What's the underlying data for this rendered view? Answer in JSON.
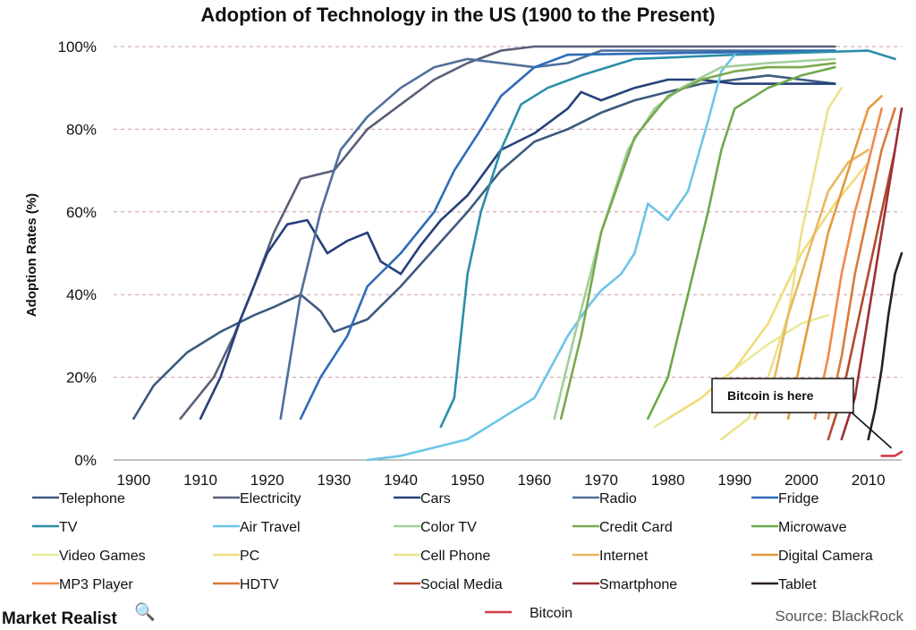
{
  "chart_data": {
    "type": "line",
    "title": "Adoption of Technology in the US (1900 to the Present)",
    "ylabel": "Adoption Rates (%)",
    "xlabel": "",
    "xlim": [
      1897,
      2015
    ],
    "ylim": [
      0,
      100
    ],
    "x_ticks": [
      1900,
      1910,
      1920,
      1930,
      1940,
      1950,
      1960,
      1970,
      1980,
      1990,
      2000,
      2010
    ],
    "y_ticks": [
      "0%",
      "20%",
      "40%",
      "60%",
      "80%",
      "100%"
    ],
    "y_tick_values": [
      0,
      20,
      40,
      60,
      80,
      100
    ],
    "grid": "horizontal dashed",
    "legend_position": "bottom",
    "series": [
      {
        "name": "Telephone",
        "color": "#3d5a80",
        "points": [
          [
            1900,
            10
          ],
          [
            1903,
            18
          ],
          [
            1908,
            26
          ],
          [
            1913,
            31
          ],
          [
            1918,
            35
          ],
          [
            1921,
            37
          ],
          [
            1925,
            40
          ],
          [
            1928,
            36
          ],
          [
            1930,
            31
          ],
          [
            1935,
            34
          ],
          [
            1940,
            42
          ],
          [
            1945,
            51
          ],
          [
            1950,
            60
          ],
          [
            1955,
            70
          ],
          [
            1960,
            77
          ],
          [
            1965,
            80
          ],
          [
            1970,
            84
          ],
          [
            1975,
            87
          ],
          [
            1980,
            89
          ],
          [
            1985,
            91
          ],
          [
            1990,
            92
          ],
          [
            1995,
            93
          ],
          [
            2000,
            92
          ],
          [
            2005,
            91
          ]
        ]
      },
      {
        "name": "Electricity",
        "color": "#5a5f78",
        "points": [
          [
            1907,
            10
          ],
          [
            1912,
            20
          ],
          [
            1915,
            30
          ],
          [
            1918,
            42
          ],
          [
            1921,
            55
          ],
          [
            1925,
            68
          ],
          [
            1930,
            70
          ],
          [
            1935,
            80
          ],
          [
            1940,
            86
          ],
          [
            1945,
            92
          ],
          [
            1950,
            96
          ],
          [
            1955,
            99
          ],
          [
            1960,
            100
          ],
          [
            2005,
            100
          ]
        ]
      },
      {
        "name": "Cars",
        "color": "#25407a",
        "points": [
          [
            1910,
            10
          ],
          [
            1913,
            20
          ],
          [
            1916,
            34
          ],
          [
            1920,
            50
          ],
          [
            1923,
            57
          ],
          [
            1926,
            58
          ],
          [
            1929,
            50
          ],
          [
            1932,
            53
          ],
          [
            1935,
            55
          ],
          [
            1937,
            48
          ],
          [
            1940,
            45
          ],
          [
            1943,
            52
          ],
          [
            1946,
            58
          ],
          [
            1950,
            64
          ],
          [
            1955,
            75
          ],
          [
            1960,
            79
          ],
          [
            1965,
            85
          ],
          [
            1967,
            89
          ],
          [
            1970,
            87
          ],
          [
            1975,
            90
          ],
          [
            1980,
            92
          ],
          [
            1985,
            92
          ],
          [
            1990,
            91
          ],
          [
            1995,
            91
          ],
          [
            2000,
            91
          ],
          [
            2005,
            91
          ]
        ]
      },
      {
        "name": "Radio",
        "color": "#4f6f9b",
        "points": [
          [
            1922,
            10
          ],
          [
            1925,
            40
          ],
          [
            1928,
            60
          ],
          [
            1931,
            75
          ],
          [
            1935,
            83
          ],
          [
            1940,
            90
          ],
          [
            1945,
            95
          ],
          [
            1950,
            97
          ],
          [
            1955,
            96
          ],
          [
            1960,
            95
          ],
          [
            1965,
            96
          ],
          [
            1970,
            99
          ],
          [
            2005,
            99
          ]
        ]
      },
      {
        "name": "Fridge",
        "color": "#2f6bb8",
        "points": [
          [
            1925,
            10
          ],
          [
            1928,
            20
          ],
          [
            1932,
            30
          ],
          [
            1935,
            42
          ],
          [
            1940,
            50
          ],
          [
            1945,
            60
          ],
          [
            1948,
            70
          ],
          [
            1952,
            80
          ],
          [
            1955,
            88
          ],
          [
            1960,
            95
          ],
          [
            1965,
            98
          ],
          [
            2005,
            99
          ]
        ]
      },
      {
        "name": "TV",
        "color": "#2b8ea8",
        "points": [
          [
            1946,
            8
          ],
          [
            1948,
            15
          ],
          [
            1950,
            45
          ],
          [
            1952,
            60
          ],
          [
            1955,
            75
          ],
          [
            1958,
            86
          ],
          [
            1962,
            90
          ],
          [
            1967,
            93
          ],
          [
            1975,
            97
          ],
          [
            1990,
            98
          ],
          [
            2010,
            99
          ],
          [
            2012,
            98
          ],
          [
            2014,
            97
          ]
        ]
      },
      {
        "name": "Air Travel",
        "color": "#6cc4e8",
        "points": [
          [
            1935,
            0
          ],
          [
            1940,
            1
          ],
          [
            1945,
            3
          ],
          [
            1950,
            5
          ],
          [
            1955,
            10
          ],
          [
            1960,
            15
          ],
          [
            1965,
            30
          ],
          [
            1968,
            37
          ],
          [
            1970,
            41
          ],
          [
            1973,
            45
          ],
          [
            1975,
            50
          ],
          [
            1977,
            62
          ],
          [
            1980,
            58
          ],
          [
            1983,
            65
          ],
          [
            1986,
            82
          ],
          [
            1988,
            94
          ],
          [
            1990,
            98
          ]
        ]
      },
      {
        "name": "Color TV",
        "color": "#9fcf9a",
        "points": [
          [
            1963,
            10
          ],
          [
            1966,
            30
          ],
          [
            1970,
            55
          ],
          [
            1974,
            75
          ],
          [
            1978,
            85
          ],
          [
            1982,
            90
          ],
          [
            1988,
            95
          ],
          [
            1995,
            96
          ],
          [
            2005,
            97
          ]
        ]
      },
      {
        "name": "Credit Card",
        "color": "#7aa84e",
        "points": [
          [
            1964,
            10
          ],
          [
            1967,
            30
          ],
          [
            1970,
            55
          ],
          [
            1975,
            78
          ],
          [
            1980,
            88
          ],
          [
            1985,
            92
          ],
          [
            1990,
            94
          ],
          [
            1995,
            95
          ],
          [
            2000,
            95
          ],
          [
            2005,
            96
          ]
        ]
      },
      {
        "name": "Microwave",
        "color": "#6ca94a",
        "points": [
          [
            1977,
            10
          ],
          [
            1980,
            20
          ],
          [
            1983,
            40
          ],
          [
            1986,
            60
          ],
          [
            1988,
            75
          ],
          [
            1990,
            85
          ],
          [
            1995,
            90
          ],
          [
            2000,
            93
          ],
          [
            2005,
            95
          ]
        ]
      },
      {
        "name": "Video Games",
        "color": "#e8eb98",
        "points": [
          [
            1978,
            8
          ],
          [
            1985,
            15
          ],
          [
            1990,
            22
          ],
          [
            1995,
            28
          ],
          [
            2000,
            33
          ],
          [
            2004,
            35
          ]
        ]
      },
      {
        "name": "PC",
        "color": "#f0dc7a",
        "points": [
          [
            1980,
            10
          ],
          [
            1985,
            15
          ],
          [
            1990,
            22
          ],
          [
            1995,
            33
          ],
          [
            2000,
            50
          ],
          [
            2005,
            62
          ],
          [
            2010,
            72
          ]
        ]
      },
      {
        "name": "Cell Phone",
        "color": "#eae28a",
        "points": [
          [
            1988,
            5
          ],
          [
            1992,
            10
          ],
          [
            1995,
            20
          ],
          [
            1998,
            35
          ],
          [
            2000,
            55
          ],
          [
            2002,
            70
          ],
          [
            2004,
            85
          ],
          [
            2006,
            90
          ]
        ]
      },
      {
        "name": "Internet",
        "color": "#e9b860",
        "points": [
          [
            1993,
            10
          ],
          [
            1996,
            20
          ],
          [
            1998,
            35
          ],
          [
            2000,
            45
          ],
          [
            2002,
            55
          ],
          [
            2004,
            65
          ],
          [
            2007,
            72
          ],
          [
            2010,
            75
          ]
        ]
      },
      {
        "name": "Digital Camera",
        "color": "#e39b3c",
        "points": [
          [
            1998,
            10
          ],
          [
            2000,
            25
          ],
          [
            2002,
            40
          ],
          [
            2004,
            55
          ],
          [
            2006,
            65
          ],
          [
            2008,
            75
          ],
          [
            2010,
            85
          ],
          [
            2012,
            88
          ]
        ]
      },
      {
        "name": "MP3 Player",
        "color": "#f08a4b",
        "points": [
          [
            2002,
            10
          ],
          [
            2004,
            25
          ],
          [
            2006,
            45
          ],
          [
            2008,
            60
          ],
          [
            2010,
            72
          ],
          [
            2012,
            85
          ]
        ]
      },
      {
        "name": "HDTV",
        "color": "#d97a3a",
        "points": [
          [
            2004,
            10
          ],
          [
            2006,
            25
          ],
          [
            2008,
            45
          ],
          [
            2010,
            60
          ],
          [
            2012,
            75
          ],
          [
            2014,
            85
          ]
        ]
      },
      {
        "name": "Social Media",
        "color": "#b34a2d",
        "points": [
          [
            2004,
            5
          ],
          [
            2006,
            15
          ],
          [
            2008,
            30
          ],
          [
            2010,
            45
          ],
          [
            2012,
            60
          ],
          [
            2014,
            75
          ]
        ]
      },
      {
        "name": "Smartphone",
        "color": "#9c2f36",
        "points": [
          [
            2006,
            5
          ],
          [
            2008,
            15
          ],
          [
            2010,
            35
          ],
          [
            2012,
            55
          ],
          [
            2014,
            75
          ],
          [
            2015,
            85
          ]
        ]
      },
      {
        "name": "Tablet",
        "color": "#2a1f22",
        "points": [
          [
            2010,
            5
          ],
          [
            2011,
            12
          ],
          [
            2012,
            22
          ],
          [
            2013,
            35
          ],
          [
            2014,
            45
          ],
          [
            2015,
            50
          ]
        ]
      },
      {
        "name": "Bitcoin",
        "color": "#d63a4a",
        "points": [
          [
            2012,
            1
          ],
          [
            2014,
            1
          ],
          [
            2015,
            2
          ]
        ]
      }
    ],
    "annotations": [
      {
        "text": "Bitcoin is here",
        "points_to": [
          2014,
          2
        ]
      }
    ]
  },
  "brand": {
    "logo_text": "Market Realist",
    "logo_symbol": "🔍"
  },
  "source_text": "Source: BlackRock"
}
